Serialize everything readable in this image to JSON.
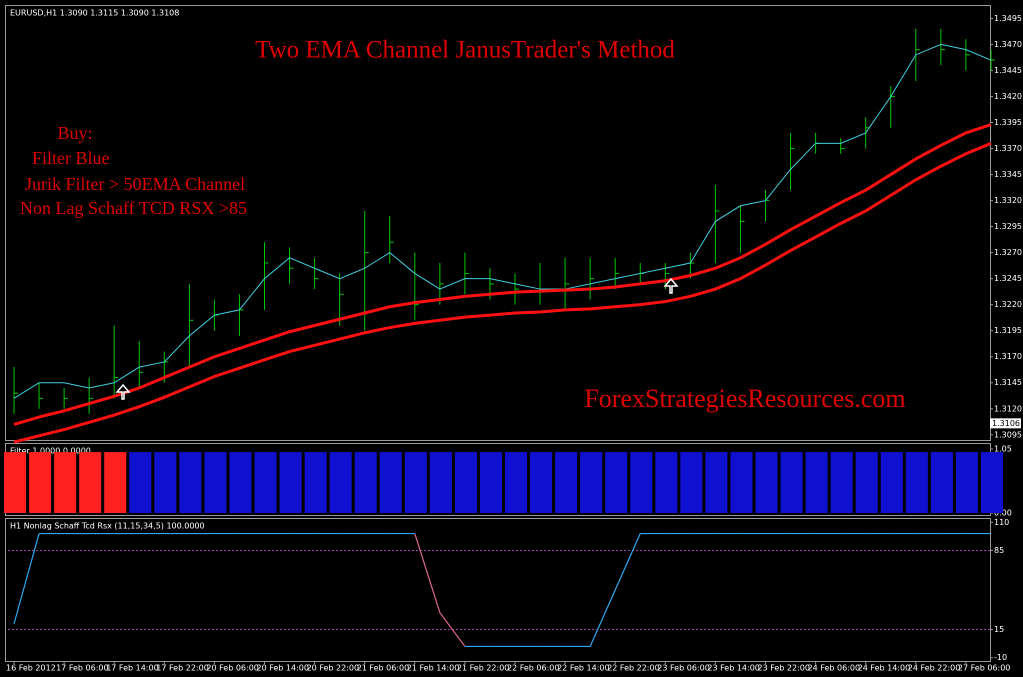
{
  "chart_data": [
    {
      "type": "ohlc",
      "subtitle": "EURUSD,H1  1.3090 1.3115 1.3090 1.3108",
      "title": "Two EMA Channel JanusTrader's Method",
      "annotations": [
        "Buy:",
        "Filter Blue",
        "Jurik Filter > 50EMA Channel",
        "Non Lag Schaff TCD RSX >85"
      ],
      "watermark": "ForexStrategiesResources.com",
      "text_color": "#e00000",
      "categories": [
        "16 Feb 2012",
        null,
        "17 Feb 06:00",
        null,
        "17 Feb 14:00",
        null,
        "17 Feb 22:00",
        null,
        "20 Feb 06:00",
        null,
        "20 Feb 14:00",
        null,
        "20 Feb 22:00",
        null,
        "21 Feb 06:00",
        null,
        "21 Feb 14:00",
        null,
        "21 Feb 22:00",
        null,
        "22 Feb 06:00",
        null,
        "22 Feb 14:00",
        null,
        "22 Feb 22:00",
        null,
        "23 Feb 06:00",
        null,
        "23 Feb 14:00",
        null,
        "23 Feb 22:00",
        null,
        "24 Feb 06:00",
        null,
        "24 Feb 14:00",
        null,
        "24 Feb 22:00",
        null,
        "27 Feb 06:00",
        null
      ],
      "high": [
        1.316,
        1.3145,
        1.314,
        1.315,
        1.32,
        1.3185,
        1.3175,
        1.324,
        1.3225,
        1.323,
        1.328,
        1.3275,
        1.3265,
        1.325,
        1.331,
        1.3305,
        1.327,
        1.326,
        1.327,
        1.3255,
        1.325,
        1.326,
        1.3265,
        1.3265,
        1.3265,
        1.326,
        1.326,
        1.327,
        1.3335,
        1.3315,
        1.333,
        1.3385,
        1.3385,
        1.338,
        1.34,
        1.343,
        1.3485,
        1.3485,
        1.3475,
        1.3465
      ],
      "low": [
        1.3115,
        1.312,
        1.312,
        1.3115,
        1.313,
        1.314,
        1.3145,
        1.316,
        1.3195,
        1.319,
        1.3215,
        1.324,
        1.3235,
        1.32,
        1.3195,
        1.326,
        1.3205,
        1.322,
        1.323,
        1.3225,
        1.322,
        1.322,
        1.3215,
        1.3225,
        1.3235,
        1.324,
        1.3235,
        1.3245,
        1.326,
        1.327,
        1.33,
        1.333,
        1.3365,
        1.3365,
        1.337,
        1.339,
        1.3435,
        1.345,
        1.3445,
        1.3445
      ],
      "close": [
        1.3135,
        1.313,
        1.313,
        1.313,
        1.315,
        1.3155,
        1.3165,
        1.3205,
        1.321,
        1.3215,
        1.326,
        1.3255,
        1.3245,
        1.323,
        1.327,
        1.328,
        1.322,
        1.324,
        1.325,
        1.324,
        1.3235,
        1.3235,
        1.324,
        1.3245,
        1.325,
        1.325,
        1.325,
        1.326,
        1.331,
        1.33,
        1.332,
        1.337,
        1.3375,
        1.337,
        1.339,
        1.342,
        1.3465,
        1.3465,
        1.346,
        1.3455
      ],
      "bar_color": "#00c800",
      "series": [
        {
          "color": "#40d0e0",
          "values": [
            1.313,
            1.3145,
            1.3145,
            1.314,
            1.3145,
            1.316,
            1.3165,
            1.319,
            1.321,
            1.3215,
            1.3245,
            1.3265,
            1.3255,
            1.3245,
            1.3255,
            1.327,
            1.325,
            1.3235,
            1.3245,
            1.3245,
            1.324,
            1.3235,
            1.3235,
            1.324,
            1.3245,
            1.325,
            1.3255,
            1.326,
            1.33,
            1.3315,
            1.332,
            1.335,
            1.3375,
            1.3375,
            1.3385,
            1.342,
            1.346,
            1.347,
            1.3465,
            1.3455
          ]
        },
        {
          "color": "#ff1010",
          "values": [
            1.3105,
            1.3112,
            1.3118,
            1.3125,
            1.3132,
            1.314,
            1.315,
            1.316,
            1.317,
            1.3178,
            1.3186,
            1.3194,
            1.32,
            1.3206,
            1.3212,
            1.3218,
            1.3222,
            1.3225,
            1.3228,
            1.323,
            1.3232,
            1.3233,
            1.3234,
            1.3235,
            1.3237,
            1.324,
            1.3243,
            1.3248,
            1.3255,
            1.3265,
            1.3278,
            1.3292,
            1.3305,
            1.3318,
            1.333,
            1.3345,
            1.336,
            1.3373,
            1.3385,
            1.3393
          ]
        },
        {
          "color": "#ff1010",
          "values": [
            1.3088,
            1.3094,
            1.31,
            1.3107,
            1.3114,
            1.3122,
            1.3131,
            1.3141,
            1.3151,
            1.3159,
            1.3167,
            1.3175,
            1.3181,
            1.3187,
            1.3193,
            1.3198,
            1.3202,
            1.3205,
            1.3208,
            1.321,
            1.3212,
            1.3213,
            1.3215,
            1.3216,
            1.3218,
            1.322,
            1.3223,
            1.3228,
            1.3235,
            1.3245,
            1.3258,
            1.3272,
            1.3285,
            1.3298,
            1.331,
            1.3325,
            1.334,
            1.3353,
            1.3365,
            1.3375
          ]
        }
      ],
      "current_price": {
        "value": 1.3106,
        "label": "1.3106"
      },
      "ylim": [
        1.309,
        1.3505
      ],
      "yticks": [
        1.3495,
        {
          "value": 1.347,
          "label": "1.3470"
        },
        1.3445,
        {
          "value": 1.342,
          "label": "1.3420"
        },
        1.3395,
        {
          "value": 1.337,
          "label": "1.3370"
        },
        1.3345,
        {
          "value": 1.332,
          "label": "1.3320"
        },
        1.3295,
        {
          "value": 1.327,
          "label": "1.3270"
        },
        1.3245,
        {
          "value": 1.322,
          "label": "1.3220"
        },
        1.3195,
        {
          "value": 1.317,
          "label": "1.3170"
        },
        1.3145,
        {
          "value": 1.312,
          "label": "1.3120"
        },
        1.3095
      ]
    },
    {
      "type": "histogram-bar",
      "title": "Filter 1.0000 0.0000",
      "values": [
        1,
        1,
        1,
        1,
        1,
        1,
        1,
        1,
        1,
        1,
        1,
        1,
        1,
        1,
        1,
        1,
        1,
        1,
        1,
        1,
        1,
        1,
        1,
        1,
        1,
        1,
        1,
        1,
        1,
        1,
        1,
        1,
        1,
        1,
        1,
        1,
        1,
        1,
        1,
        1
      ],
      "colors": [
        "#ff2020",
        "#ff2020",
        "#ff2020",
        "#ff2020",
        "#ff2020",
        "#1010d0",
        "#1010d0",
        "#1010d0",
        "#1010d0",
        "#1010d0",
        "#1010d0",
        "#1010d0",
        "#1010d0",
        "#1010d0",
        "#1010d0",
        "#1010d0",
        "#1010d0",
        "#1010d0",
        "#1010d0",
        "#1010d0",
        "#1010d0",
        "#1010d0",
        "#1010d0",
        "#1010d0",
        "#1010d0",
        "#1010d0",
        "#1010d0",
        "#1010d0",
        "#1010d0",
        "#1010d0",
        "#1010d0",
        "#1010d0",
        "#1010d0",
        "#1010d0",
        "#1010d0",
        "#1010d0",
        "#1010d0",
        "#1010d0",
        "#1010d0",
        "#1010d0"
      ],
      "ylim": [
        0,
        1.1
      ],
      "yticks": [
        1.05,
        {
          "value": 0,
          "label": "0.00"
        }
      ]
    },
    {
      "type": "line",
      "title": "H1 Nonlag Schaff Tcd Rsx (11,15,34,5) 100.0000",
      "values": [
        20,
        100,
        100,
        100,
        100,
        100,
        100,
        100,
        100,
        100,
        100,
        100,
        100,
        100,
        100,
        100,
        100,
        30,
        0,
        0,
        0,
        0,
        0,
        0,
        50,
        100,
        100,
        100,
        100,
        100,
        100,
        100,
        100,
        100,
        100,
        100,
        100,
        100,
        100,
        100
      ],
      "color": "#30a8f0",
      "down_color": "#e06890",
      "levels": [
        85,
        15
      ],
      "level_color": "#a040b0",
      "ylim": [
        -12,
        112
      ],
      "yticks": [
        110,
        85,
        15,
        -10
      ]
    }
  ]
}
